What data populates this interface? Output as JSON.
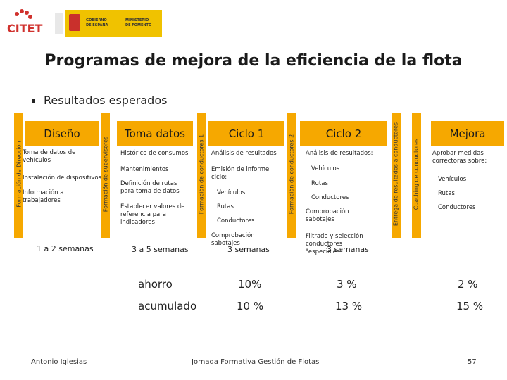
{
  "header": {
    "logo_text": "CITET",
    "gov_left_1": "GOBIERNO",
    "gov_left_2": "DE ESPAÑA",
    "gov_right_1": "MINISTERIO",
    "gov_right_2": "DE FOMENTO"
  },
  "title": "Programas de mejora de la eficiencia de la flota",
  "section": "Resultados esperados",
  "side_labels": {
    "formacion_direccion": "Formación de Dirección",
    "formacion_supervisores": "Formación de supervisores",
    "formacion_conductores_1": "Formación de conductores 1",
    "formacion_conductores_2": "Formación de conductores 2",
    "entrega_resultados": "Entrega de resultados a conductores",
    "coaching": "Coaching de conductores"
  },
  "columns": [
    {
      "heading": "Diseño",
      "items": [
        "Toma de datos de vehículos",
        "Instalación de dispositivos",
        "Información a trabajadores"
      ],
      "duration": "1 a 2 semanas"
    },
    {
      "heading": "Toma datos",
      "items": [
        "Histórico de consumos",
        "Mantenimientos",
        "Definición de rutas para toma de datos",
        "Establecer valores de referencia para indicadores"
      ],
      "duration": "3 a 5 semanas"
    },
    {
      "heading": "Ciclo 1",
      "items": [
        "Análisis de resultados",
        "Emisión de informe ciclo:",
        "Vehículos",
        "Rutas",
        "Conductores",
        "Comprobación sabotajes"
      ],
      "duration": "3 semanas"
    },
    {
      "heading": "Ciclo 2",
      "items": [
        "Análisis de resultados:",
        "Vehículos",
        "Rutas",
        "Conductores",
        "Comprobación sabotajes",
        "Filtrado y selección conductores \"especiales\""
      ],
      "duration": "3 semanas"
    },
    {
      "heading": "Mejora",
      "items": [
        "Aprobar medidas correctoras sobre:",
        "Vehículos",
        "Rutas",
        "Conductores"
      ],
      "duration": ""
    }
  ],
  "results": [
    {
      "label": "ahorro",
      "ciclo1": "10%",
      "ciclo2": "3 %",
      "mejora": "2 %"
    },
    {
      "label": "acumulado",
      "ciclo1": "10 %",
      "ciclo2": "13 %",
      "mejora": "15 %"
    }
  ],
  "footer": {
    "author": "Antonio Iglesias",
    "event": "Jornada Formativa Gestión de Flotas",
    "page": "57"
  },
  "colors": {
    "accent": "#f6a800",
    "logo_red": "#d0312d"
  }
}
